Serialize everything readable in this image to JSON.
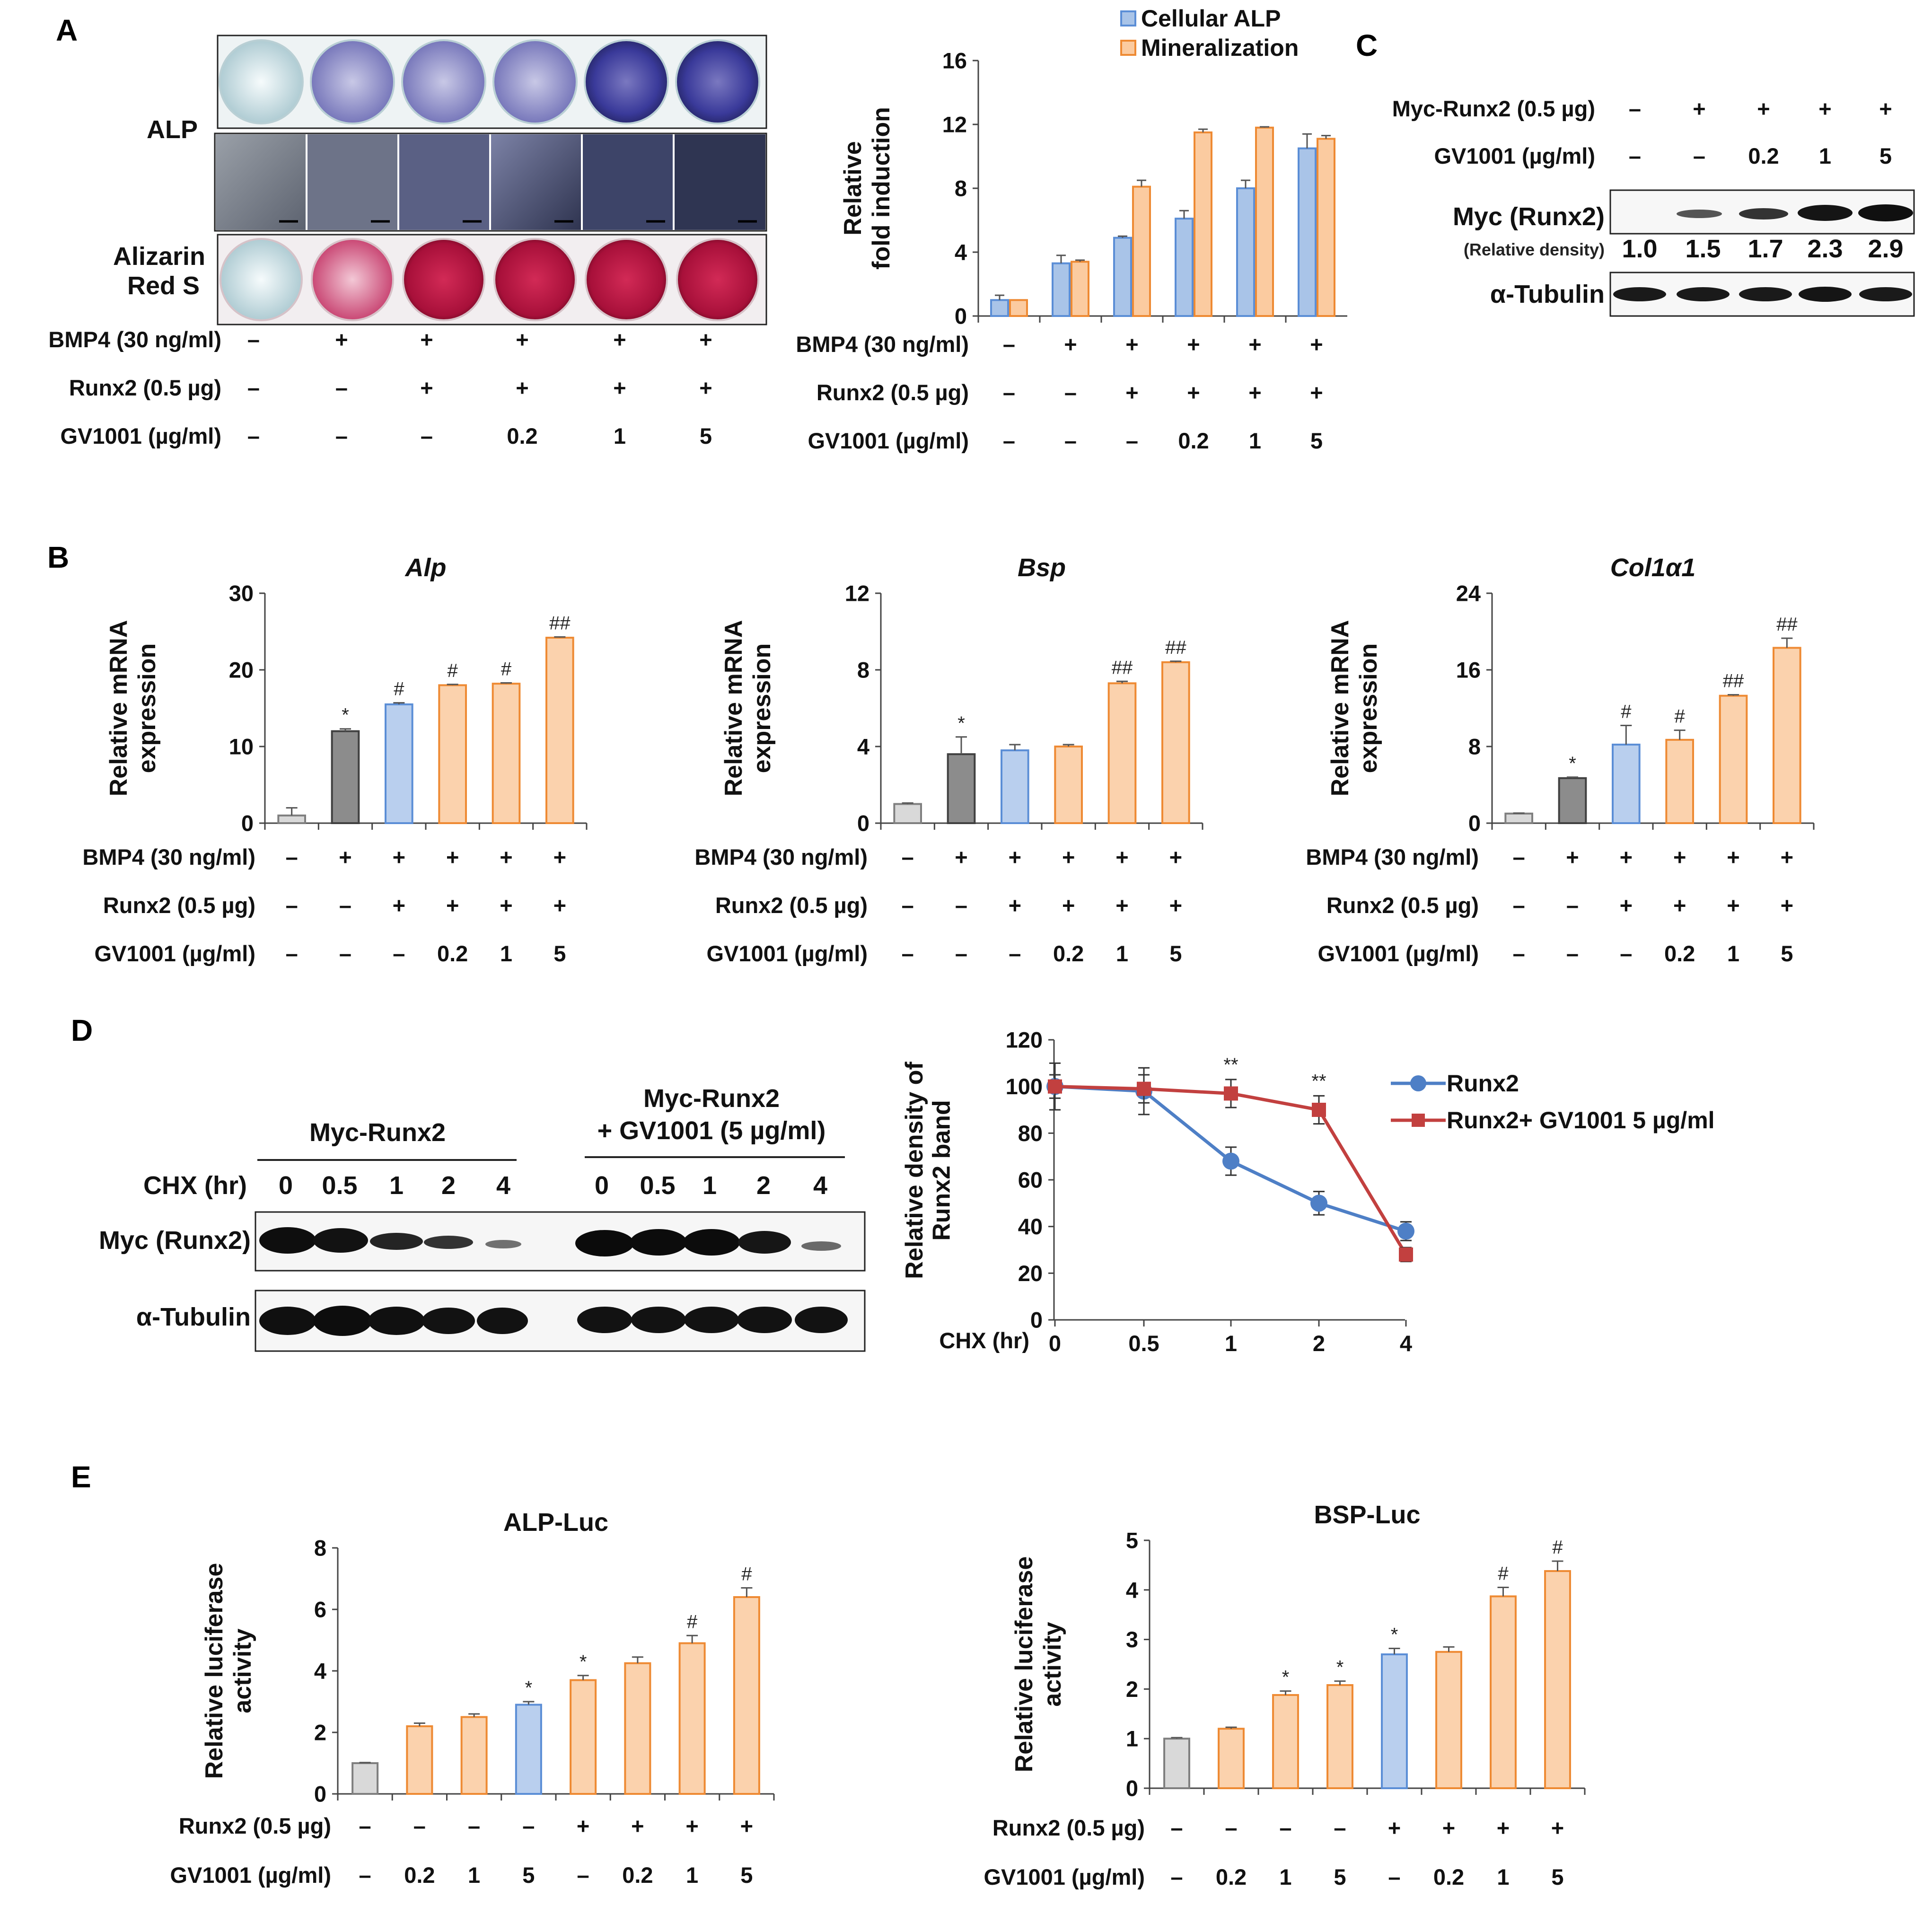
{
  "figure": {
    "panels": {
      "A": "A",
      "B": "B",
      "C": "C",
      "D": "D",
      "E": "E"
    }
  },
  "panel_a": {
    "row_labels": {
      "alp": "ALP",
      "alizarin_1": "Alizarin",
      "alizarin_2": "Red S"
    },
    "conditions": [
      {
        "label": "BMP4 (30 ng/ml)",
        "values": [
          "–",
          "+",
          "+",
          "+",
          "+",
          "+"
        ]
      },
      {
        "label": "Runx2 (0.5 µg)",
        "values": [
          "–",
          "–",
          "+",
          "+",
          "+",
          "+"
        ]
      },
      {
        "label": "GV1001 (µg/ml)",
        "values": [
          "–",
          "–",
          "–",
          "0.2",
          "1",
          "5"
        ]
      }
    ],
    "colors": {
      "alp_well": "#3a3a9a",
      "alizarin_well": "#b0103a"
    }
  },
  "panel_c": {
    "conditions": [
      {
        "label": "Myc-Runx2 (0.5 µg)",
        "values": [
          "–",
          "+",
          "+",
          "+",
          "+"
        ]
      },
      {
        "label": "GV1001 (µg/ml)",
        "values": [
          "–",
          "–",
          "0.2",
          "1",
          "5"
        ]
      }
    ],
    "bands": {
      "myc": "Myc (Runx2)",
      "tubulin": "α-Tubulin"
    },
    "density_label": "(Relative density)",
    "density_values": [
      "1.0",
      "1.5",
      "1.7",
      "2.3",
      "2.9"
    ]
  },
  "panel_d_blot": {
    "group1": "Myc-Runx2",
    "group2_line1": "Myc-Runx2",
    "group2_line2": "+ GV1001 (5 µg/ml)",
    "chx_label": "CHX (hr)",
    "chx_values": [
      "0",
      "0.5",
      "1",
      "2",
      "4"
    ],
    "bands": {
      "myc": "Myc (Runx2)",
      "tubulin": "α-Tubulin"
    }
  },
  "chart_data": [
    {
      "id": "A-fold",
      "type": "bar",
      "title": "",
      "ylabel": "Relative fold induction",
      "ylim": [
        0,
        16
      ],
      "yticks": [
        0,
        4,
        8,
        12,
        16
      ],
      "grid": false,
      "legend_position": "top-right",
      "categories": [
        "1",
        "2",
        "3",
        "4",
        "5",
        "6"
      ],
      "series": [
        {
          "name": "Cellular ALP",
          "color": "#a9c4e8",
          "edge": "#5b8ed6",
          "values": [
            1.0,
            3.3,
            4.9,
            6.1,
            8.0,
            10.5
          ],
          "errors": [
            0.3,
            0.5,
            0.1,
            0.5,
            0.5,
            0.9
          ]
        },
        {
          "name": "Mineralization",
          "color": "#fbcba0",
          "edge": "#ee8a33",
          "values": [
            1.0,
            3.4,
            8.1,
            11.5,
            11.8,
            11.1
          ],
          "errors": [
            0.0,
            0.1,
            0.4,
            0.2,
            0.05,
            0.2
          ]
        }
      ],
      "conditions": [
        {
          "label": "BMP4 (30 ng/ml)",
          "values": [
            "–",
            "+",
            "+",
            "+",
            "+",
            "+"
          ]
        },
        {
          "label": "Runx2 (0.5 µg)",
          "values": [
            "–",
            "–",
            "+",
            "+",
            "+",
            "+"
          ]
        },
        {
          "label": "GV1001 (µg/ml)",
          "values": [
            "–",
            "–",
            "–",
            "0.2",
            "1",
            "5"
          ]
        }
      ]
    },
    {
      "id": "B-alp",
      "type": "bar",
      "title": "Alp",
      "ylabel": "Relative mRNA expression",
      "ylim": [
        0,
        30
      ],
      "yticks": [
        0,
        10,
        20,
        30
      ],
      "grid": false,
      "categories": [
        "1",
        "2",
        "3",
        "4",
        "5",
        "6"
      ],
      "values": [
        1.0,
        12.0,
        15.5,
        18.0,
        18.2,
        24.2
      ],
      "errors": [
        1.0,
        0.3,
        0.2,
        0.1,
        0.1,
        0.1
      ],
      "colors": [
        "gray-light",
        "gray-dark",
        "blue",
        "orange",
        "orange",
        "orange"
      ],
      "annotations": [
        "",
        "*",
        "#",
        "#",
        "#",
        "##"
      ],
      "conditions": [
        {
          "label": "BMP4 (30 ng/ml)",
          "values": [
            "–",
            "+",
            "+",
            "+",
            "+",
            "+"
          ]
        },
        {
          "label": "Runx2 (0.5 µg)",
          "values": [
            "–",
            "–",
            "+",
            "+",
            "+",
            "+"
          ]
        },
        {
          "label": "GV1001 (µg/ml)",
          "values": [
            "–",
            "–",
            "–",
            "0.2",
            "1",
            "5"
          ]
        }
      ]
    },
    {
      "id": "B-bsp",
      "type": "bar",
      "title": "Bsp",
      "ylabel": "Relative mRNA expression",
      "ylim": [
        0,
        12
      ],
      "yticks": [
        0,
        4,
        8,
        12
      ],
      "grid": false,
      "categories": [
        "1",
        "2",
        "3",
        "4",
        "5",
        "6"
      ],
      "values": [
        1.0,
        3.6,
        3.8,
        4.0,
        7.3,
        8.4
      ],
      "errors": [
        0.05,
        0.9,
        0.3,
        0.1,
        0.1,
        0.05
      ],
      "colors": [
        "gray-light",
        "gray-dark",
        "blue",
        "orange",
        "orange",
        "orange"
      ],
      "annotations": [
        "",
        "*",
        "",
        "",
        "##",
        "##"
      ],
      "conditions": [
        {
          "label": "BMP4 (30 ng/ml)",
          "values": [
            "–",
            "+",
            "+",
            "+",
            "+",
            "+"
          ]
        },
        {
          "label": "Runx2 (0.5 µg)",
          "values": [
            "–",
            "–",
            "+",
            "+",
            "+",
            "+"
          ]
        },
        {
          "label": "GV1001 (µg/ml)",
          "values": [
            "–",
            "–",
            "–",
            "0.2",
            "1",
            "5"
          ]
        }
      ]
    },
    {
      "id": "B-col",
      "type": "bar",
      "title": "Col1α1",
      "ylabel": "Relative mRNA expression",
      "ylim": [
        0,
        24
      ],
      "yticks": [
        0,
        8,
        16,
        24
      ],
      "grid": false,
      "categories": [
        "1",
        "2",
        "3",
        "4",
        "5",
        "6"
      ],
      "values": [
        1.0,
        4.7,
        8.2,
        8.7,
        13.3,
        18.3
      ],
      "errors": [
        0.05,
        0.1,
        2.0,
        1.0,
        0.1,
        1.0
      ],
      "colors": [
        "gray-light",
        "gray-dark",
        "blue",
        "orange",
        "orange",
        "orange"
      ],
      "annotations": [
        "",
        "*",
        "#",
        "#",
        "##",
        "##"
      ],
      "conditions": [
        {
          "label": "BMP4 (30 ng/ml)",
          "values": [
            "–",
            "+",
            "+",
            "+",
            "+",
            "+"
          ]
        },
        {
          "label": "Runx2 (0.5 µg)",
          "values": [
            "–",
            "–",
            "+",
            "+",
            "+",
            "+"
          ]
        },
        {
          "label": "GV1001 (µg/ml)",
          "values": [
            "–",
            "–",
            "–",
            "0.2",
            "1",
            "5"
          ]
        }
      ]
    },
    {
      "id": "D-line",
      "type": "line",
      "title": "",
      "xlabel": "CHX (hr)",
      "ylabel": "Relative density of Runx2 band",
      "ylim": [
        0,
        120
      ],
      "yticks": [
        0,
        20,
        40,
        60,
        80,
        100,
        120
      ],
      "grid": false,
      "legend_position": "right",
      "x": [
        "0",
        "0.5",
        "1",
        "2",
        "4"
      ],
      "series": [
        {
          "name": "Runx2",
          "color": "#4e7fc6",
          "marker": "circle",
          "values": [
            100,
            98,
            68,
            50,
            38
          ],
          "errors": [
            10,
            10,
            6,
            5,
            4
          ]
        },
        {
          "name": "Runx2+ GV1001 5 µg/ml",
          "color": "#c2403f",
          "marker": "square",
          "values": [
            100,
            99,
            97,
            90,
            28
          ],
          "errors": [
            5,
            6,
            6,
            6,
            3
          ]
        }
      ],
      "annotations": [
        {
          "x": "1",
          "text": "**"
        },
        {
          "x": "2",
          "text": "**"
        }
      ]
    },
    {
      "id": "E-alp",
      "type": "bar",
      "title": "ALP-Luc",
      "ylabel": "Relative luciferase activity",
      "ylim": [
        0,
        8
      ],
      "yticks": [
        0,
        2,
        4,
        6,
        8
      ],
      "grid": false,
      "categories": [
        "1",
        "2",
        "3",
        "4",
        "5",
        "6",
        "7",
        "8"
      ],
      "values": [
        1.0,
        2.2,
        2.5,
        2.9,
        3.7,
        4.25,
        4.9,
        6.4
      ],
      "errors": [
        0.02,
        0.1,
        0.1,
        0.1,
        0.15,
        0.2,
        0.25,
        0.3
      ],
      "colors": [
        "gray-light",
        "orange",
        "orange",
        "blue",
        "orange",
        "orange",
        "orange",
        "orange"
      ],
      "annotations": [
        "",
        "",
        "",
        "*",
        "*",
        "",
        "#",
        "#"
      ],
      "conditions": [
        {
          "label": "Runx2 (0.5 µg)",
          "values": [
            "–",
            "–",
            "–",
            "–",
            "+",
            "+",
            "+",
            "+"
          ]
        },
        {
          "label": "GV1001 (µg/ml)",
          "values": [
            "–",
            "0.2",
            "1",
            "5",
            "–",
            "0.2",
            "1",
            "5"
          ]
        }
      ]
    },
    {
      "id": "E-bsp",
      "type": "bar",
      "title": "BSP-Luc",
      "ylabel": "Relative luciferase activity",
      "ylim": [
        0,
        5
      ],
      "yticks": [
        0,
        1,
        2,
        3,
        4,
        5
      ],
      "grid": false,
      "categories": [
        "1",
        "2",
        "3",
        "4",
        "5",
        "6",
        "7",
        "8"
      ],
      "values": [
        1.0,
        1.2,
        1.88,
        2.08,
        2.7,
        2.75,
        3.87,
        4.38
      ],
      "errors": [
        0.02,
        0.03,
        0.08,
        0.08,
        0.12,
        0.1,
        0.18,
        0.2
      ],
      "colors": [
        "gray-light",
        "orange",
        "orange",
        "orange",
        "blue",
        "orange",
        "orange",
        "orange"
      ],
      "annotations": [
        "",
        "",
        "*",
        "*",
        "*",
        "",
        "#",
        "#"
      ],
      "conditions": [
        {
          "label": "Runx2 (0.5 µg)",
          "values": [
            "–",
            "–",
            "–",
            "–",
            "+",
            "+",
            "+",
            "+"
          ]
        },
        {
          "label": "GV1001 (µg/ml)",
          "values": [
            "–",
            "0.2",
            "1",
            "5",
            "–",
            "0.2",
            "1",
            "5"
          ]
        }
      ]
    }
  ]
}
